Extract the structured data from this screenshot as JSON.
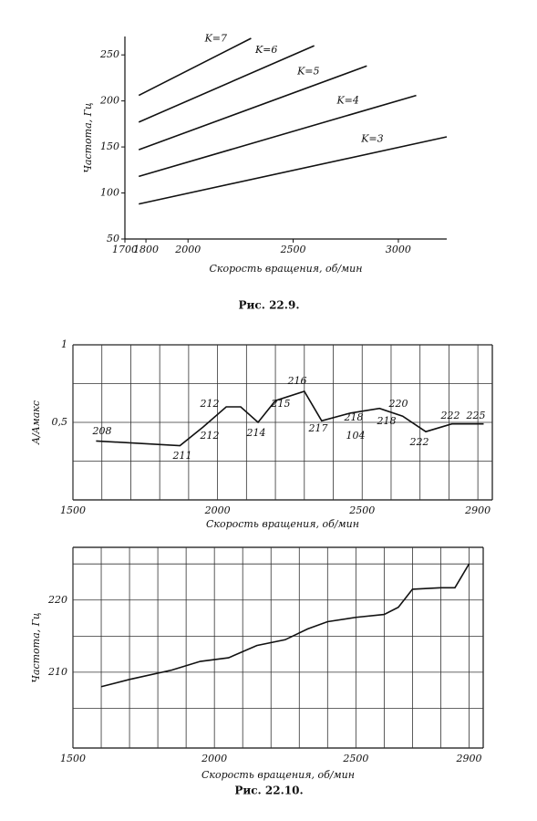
{
  "chart_data": [
    {
      "type": "line",
      "xlabel": "Скорость вращения, об/мин",
      "ylabel": "Частота, Гц",
      "xlim": [
        1700,
        3230
      ],
      "ylim": [
        50,
        270
      ],
      "xticks": [
        1700,
        1800,
        2000,
        2500,
        3000
      ],
      "yticks": [
        50,
        100,
        150,
        200,
        250
      ],
      "grid": false,
      "series": [
        {
          "name": "K=7",
          "color": "#111111",
          "x": [
            1766,
            2300
          ],
          "values": [
            206,
            268
          ]
        },
        {
          "name": "K=6",
          "color": "#111111",
          "x": [
            1766,
            2600
          ],
          "values": [
            177,
            260
          ]
        },
        {
          "name": "K=5",
          "color": "#111111",
          "x": [
            1766,
            2850
          ],
          "values": [
            147,
            238
          ]
        },
        {
          "name": "K=4",
          "color": "#111111",
          "x": [
            1766,
            3085
          ],
          "values": [
            118,
            206
          ]
        },
        {
          "name": "K=3",
          "color": "#111111",
          "x": [
            1766,
            3230
          ],
          "values": [
            88,
            161
          ]
        }
      ]
    },
    {
      "type": "line",
      "xlabel": "Скорость вращения, об/мин",
      "ylabel": "A/Aмакс",
      "xlim": [
        1500,
        2950
      ],
      "ylim": [
        0,
        1
      ],
      "xticks": [
        1500,
        2000,
        2500,
        2900
      ],
      "yticks": [
        1,
        {
          "value": 0.5,
          "label": "0,5"
        }
      ],
      "grid": true,
      "ygrid": [
        0.25,
        0.75
      ],
      "xgrid": [
        1600,
        1700,
        1800,
        1900,
        2100,
        2200,
        2300,
        2400,
        2600,
        2700,
        2800
      ],
      "series": [
        {
          "color": "#111111",
          "x": [
            1580,
            1870,
            1950,
            2030,
            2080,
            2140,
            2200,
            2300,
            2360,
            2460,
            2560,
            2640,
            2720,
            2810,
            2920
          ],
          "values": [
            0.38,
            0.35,
            0.47,
            0.6,
            0.6,
            0.5,
            0.64,
            0.7,
            0.51,
            0.56,
            0.59,
            0.54,
            0.44,
            0.49,
            0.49
          ]
        }
      ],
      "annotations": [
        "208",
        "211",
        "212",
        "212",
        "214",
        "215",
        "216",
        "217",
        "218",
        "104",
        "218",
        "220",
        "222",
        "222",
        "225"
      ]
    },
    {
      "type": "line",
      "xlabel": "Скорость вращения, об/мин",
      "ylabel": "Частота, Гц",
      "xlim": [
        1500,
        2950
      ],
      "ylim": [
        199.5,
        227.3
      ],
      "xticks": [
        1500,
        2000,
        2500,
        2900
      ],
      "yticks": [
        210,
        220
      ],
      "grid": true,
      "ygrid": [
        205,
        215,
        225
      ],
      "xgrid": [
        1600,
        1700,
        1800,
        1900,
        2100,
        2200,
        2300,
        2400,
        2600,
        2700,
        2800
      ],
      "series": [
        {
          "color": "#111111",
          "x": [
            1600,
            1700,
            1850,
            1950,
            2050,
            2150,
            2250,
            2330,
            2400,
            2500,
            2600,
            2650,
            2700,
            2800,
            2850,
            2900
          ],
          "values": [
            208,
            209,
            210.3,
            211.5,
            212,
            213.7,
            214.5,
            216,
            217,
            217.6,
            218,
            219,
            221.5,
            221.7,
            221.7,
            225
          ]
        }
      ]
    }
  ],
  "captions": [
    "Рис. 22.9.",
    "Рис. 22.10."
  ]
}
